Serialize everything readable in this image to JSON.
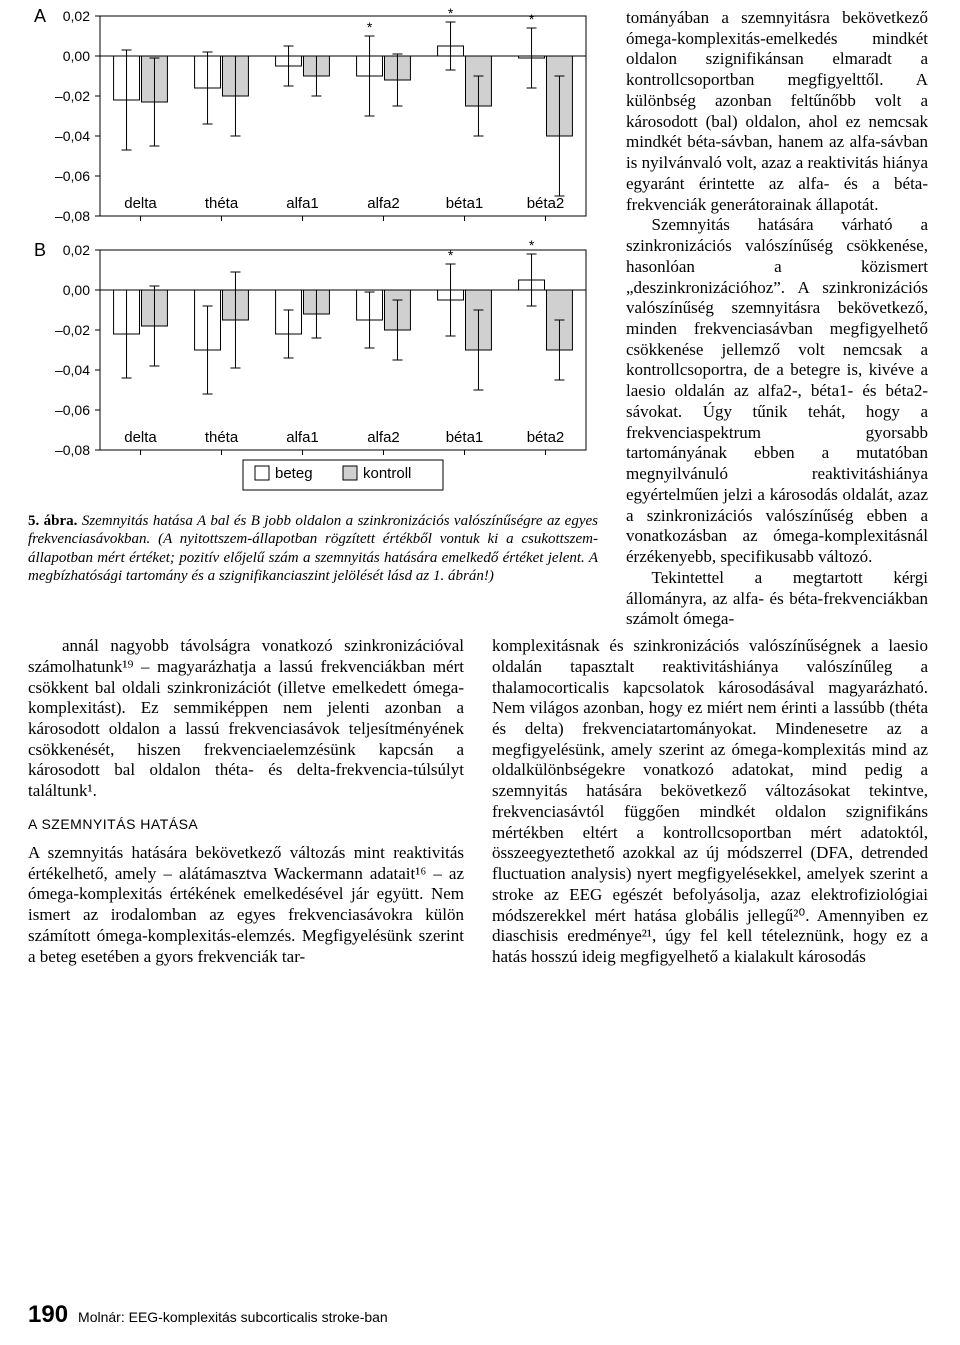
{
  "figure": {
    "panelA_letter": "A",
    "panelB_letter": "B",
    "categories": [
      "delta",
      "théta",
      "alfa1",
      "alfa2",
      "béta1",
      "béta2"
    ],
    "y_ticks": [
      "0,02",
      "0,00",
      "–0,02",
      "–0,04",
      "–0,06",
      "–0,08"
    ],
    "y_vals": [
      0.02,
      0.0,
      -0.02,
      -0.04,
      -0.06,
      -0.08
    ],
    "ylim": [
      -0.08,
      0.02
    ],
    "legend": {
      "beteg": "beteg",
      "kontroll": "kontroll"
    },
    "colors": {
      "beteg_fill": "#ffffff",
      "kontroll_fill": "#d0d0d0",
      "stroke": "#000000",
      "bg": "#ffffff"
    },
    "panelA": {
      "beteg": {
        "values": [
          -0.022,
          -0.016,
          -0.005,
          -0.01,
          0.005,
          -0.001
        ],
        "err": [
          0.025,
          0.018,
          0.01,
          0.02,
          0.012,
          0.015
        ]
      },
      "kontroll": {
        "values": [
          -0.023,
          -0.02,
          -0.01,
          -0.012,
          -0.025,
          -0.04
        ],
        "err": [
          0.022,
          0.02,
          0.01,
          0.013,
          0.015,
          0.03
        ]
      },
      "stars_beteg": [
        false,
        false,
        false,
        true,
        true,
        true
      ],
      "stars_kontroll": [
        false,
        false,
        false,
        false,
        false,
        false
      ]
    },
    "panelB": {
      "beteg": {
        "values": [
          -0.022,
          -0.03,
          -0.022,
          -0.015,
          -0.005,
          0.005
        ],
        "err": [
          0.022,
          0.022,
          0.012,
          0.014,
          0.018,
          0.013
        ]
      },
      "kontroll": {
        "values": [
          -0.018,
          -0.015,
          -0.012,
          -0.02,
          -0.03,
          -0.03
        ],
        "err": [
          0.02,
          0.024,
          0.012,
          0.015,
          0.02,
          0.015
        ]
      },
      "stars_beteg": [
        false,
        false,
        false,
        false,
        true,
        true
      ],
      "stars_kontroll": [
        false,
        false,
        false,
        false,
        false,
        false
      ]
    },
    "caption_lead": "5. ábra.",
    "caption_body": " Szemnyitás hatása A bal és B jobb oldalon a szinkronizációs valószínűségre az egyes frekvenciasávokban. (A nyitottszem-állapotban rögzített értékből vontuk ki a csukottszem-állapotban mért értéket; pozitív előjelű szám a szemnyitás hatására emelkedő értéket jelent. A megbízhatósági tartomány és a szignifikanciaszint jelölését lásd az 1. ábrán!)"
  },
  "text": {
    "right_col": "tományában a szemnyitásra bekövetkező ómega-komplexitás-emelkedés mindkét oldalon szignifikánsan elmaradt a kontrollcsoportban megfigyelttől. A különbség azonban feltűnőbb volt a károsodott (bal) oldalon, ahol ez nemcsak mindkét béta-sávban, hanem az alfa-sávban is nyilvánvaló volt, azaz a reaktivitás hiánya egyaránt érintette az alfa- és a béta-frekvenciák generátorainak állapotát.\nSzemnyitás hatására várható a szinkronizációs valószínűség csökkenése, hasonlóan a közismert „deszinkronizációhoz”. A szinkronizációs valószínűség szemnyitásra bekövetkező, minden frekvenciasávban megfigyelhető csökkenése jellemző volt nemcsak a kontrollcsoportra, de a betegre is, kivéve a laesio oldalán az alfa2-, béta1- és béta2-sávokat. Úgy tűnik tehát, hogy a frekvenciaspektrum gyorsabb tartományának ebben a mutatóban megnyilvánuló reaktivitáshiánya egyértelműen jelzi a károsodás oldalát, azaz a szinkronizációs valószínűség ebben a vonatkozásban az ómega-komplexitásnál érzékenyebb, specifikusabb változó.\nTekintettel a megtartott kérgi állományra, az alfa- és béta-frekvenciákban számolt ómega-",
    "col_left_p1": "annál nagyobb távolságra vonatkozó szinkronizációval számolhatunk¹⁹ – magyarázhatja a lassú frekvenciákban mért csökkent bal oldali szinkronizációt (illetve emelkedett ómega-komplexitást). Ez semmiképpen nem jelenti azonban a károsodott oldalon a lassú frekvenciasávok teljesítményének csökkenését, hiszen frekvenciaelemzésünk kapcsán a károsodott bal oldalon théta- és delta-frekvencia-túlsúlyt találtunk¹.",
    "subhead": "A SZEMNYITÁS HATÁSA",
    "col_left_p2": "A szemnyitás hatására bekövetkező változás mint reaktivitás értékelhető, amely – alátámasztva Wackermann adatait¹⁶ – az ómega-komplexitás értékének emelkedésével jár együtt. Nem ismert az irodalomban az egyes frekvenciasávokra külön számított ómega-komplexitás-elemzés. Megfigyelésünk szerint a beteg esetében a gyors frekvenciák tar-",
    "col_right": "komplexitásnak és szinkronizációs valószínűségnek a laesio oldalán tapasztalt reaktivitáshiánya valószínűleg a thalamocorticalis kapcsolatok károsodásával magyarázható. Nem világos azonban, hogy ez miért nem érinti a lassúbb (théta és delta) frekvenciatartományokat. Mindenesetre az a megfigyelésünk, amely szerint az ómega-komplexitás mind az oldalkülönbségekre vonatkozó adatokat, mind pedig a szemnyitás hatására bekövetkező változásokat tekintve, frekvenciasávtól függően mindkét oldalon szignifikáns mértékben eltért a kontrollcsoportban mért adatoktól, összeegyeztethető azokkal az új módszerrel (DFA, detrended fluctuation analysis) nyert megfigyelésekkel, amelyek szerint a stroke az EEG egészét befolyásolja, azaz elektrofiziológiai módszerekkel mért hatása globális jellegű²⁰. Amennyiben ez diaschisis eredménye²¹, úgy fel kell tételeznünk, hogy ez a hatás hosszú ideig megfigyelhető a kialakult károsodás"
  },
  "footer": {
    "page": "190",
    "title": "Molnár: EEG-komplexitás subcorticalis stroke-ban"
  }
}
